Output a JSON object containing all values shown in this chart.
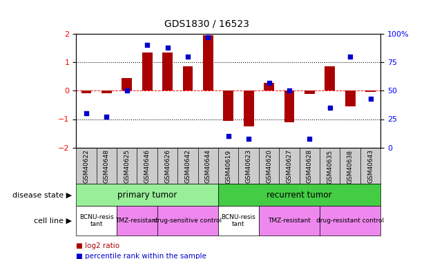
{
  "title": "GDS1830 / 16523",
  "samples": [
    "GSM40622",
    "GSM40648",
    "GSM40625",
    "GSM40646",
    "GSM40626",
    "GSM40642",
    "GSM40644",
    "GSM40619",
    "GSM40623",
    "GSM40620",
    "GSM40627",
    "GSM40628",
    "GSM40635",
    "GSM40638",
    "GSM40643"
  ],
  "log2_ratio": [
    -0.08,
    -0.1,
    0.45,
    1.35,
    1.35,
    0.85,
    1.95,
    -1.05,
    -1.25,
    0.28,
    -1.12,
    -0.12,
    0.85,
    -0.55,
    -0.05
  ],
  "percentile": [
    30,
    27,
    50,
    90,
    88,
    80,
    97,
    10,
    8,
    57,
    50,
    8,
    35,
    80,
    43
  ],
  "bar_color": "#aa0000",
  "dot_color": "#0000cc",
  "disease_state_groups": [
    {
      "label": "primary tumor",
      "start": 0,
      "end": 7,
      "color": "#99ee99"
    },
    {
      "label": "recurrent tumor",
      "start": 7,
      "end": 15,
      "color": "#44cc44"
    }
  ],
  "cell_line_groups": [
    {
      "label": "BCNU-resis\ntant",
      "start": 0,
      "end": 2,
      "color": "#ffffff"
    },
    {
      "label": "TMZ-resistant",
      "start": 2,
      "end": 4,
      "color": "#ee88ee"
    },
    {
      "label": "drug-sensitive control",
      "start": 4,
      "end": 7,
      "color": "#ee88ee"
    },
    {
      "label": "BCNU-resis\ntant",
      "start": 7,
      "end": 9,
      "color": "#ffffff"
    },
    {
      "label": "TMZ-resistant",
      "start": 9,
      "end": 12,
      "color": "#ee88ee"
    },
    {
      "label": "drug-resistant control",
      "start": 12,
      "end": 15,
      "color": "#ee88ee"
    }
  ],
  "ylim_left": [
    -2,
    2
  ],
  "ylim_right": [
    0,
    100
  ],
  "yticks_left": [
    -2,
    -1,
    0,
    1,
    2
  ],
  "yticks_right": [
    0,
    25,
    50,
    75,
    100
  ],
  "background_color": "#ffffff",
  "label_disease_state": "disease state",
  "label_cell_line": "cell line",
  "legend_bar": "log2 ratio",
  "legend_dot": "percentile rank within the sample",
  "sample_bg_color": "#cccccc"
}
